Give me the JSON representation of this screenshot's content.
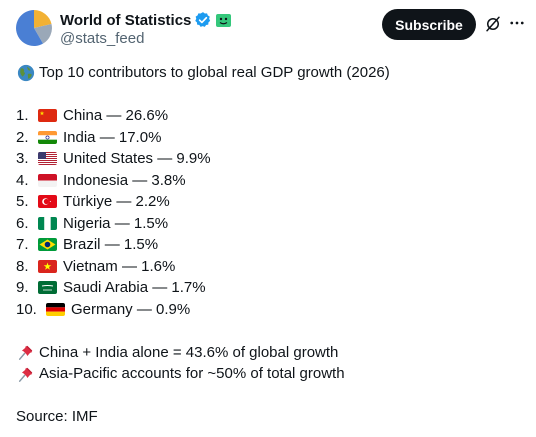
{
  "account": {
    "display_name": "World of Statistics",
    "handle": "@stats_feed"
  },
  "actions": {
    "subscribe_label": "Subscribe"
  },
  "icons": {
    "verified": "verified-badge-icon",
    "affiliate": "affiliate-badge-icon",
    "grok": "grok-icon",
    "more": "more-options-icon",
    "globe": "globe-emoji-icon",
    "pin": "pushpin-emoji-icon"
  },
  "colors": {
    "subscribe_bg": "#0f1419",
    "verified_blue": "#1d9bf0",
    "text_primary": "#0f1419",
    "text_secondary": "#536471"
  },
  "tweet": {
    "title": "Top 10 contributors to global real GDP growth (2026)",
    "ranking": [
      {
        "rank": "1.",
        "flag": "flag-china-icon",
        "country": "China",
        "value": "26.6%"
      },
      {
        "rank": "2.",
        "flag": "flag-india-icon",
        "country": "India",
        "value": "17.0%"
      },
      {
        "rank": "3.",
        "flag": "flag-united-states-icon",
        "country": "United States",
        "value": "9.9%"
      },
      {
        "rank": "4.",
        "flag": "flag-indonesia-icon",
        "country": "Indonesia",
        "value": "3.8%"
      },
      {
        "rank": "5.",
        "flag": "flag-turkiye-icon",
        "country": "Türkiye",
        "value": "2.2%"
      },
      {
        "rank": "6.",
        "flag": "flag-nigeria-icon",
        "country": "Nigeria",
        "value": "1.5%"
      },
      {
        "rank": "7.",
        "flag": "flag-brazil-icon",
        "country": "Brazil",
        "value": "1.5%"
      },
      {
        "rank": "8.",
        "flag": "flag-vietnam-icon",
        "country": "Vietnam",
        "value": "1.6%"
      },
      {
        "rank": "9.",
        "flag": "flag-saudi-arabia-icon",
        "country": "Saudi Arabia",
        "value": "1.7%"
      },
      {
        "rank": "10.",
        "flag": "flag-germany-icon",
        "country": "Germany",
        "value": "0.9%"
      }
    ],
    "separator": "—",
    "notes": [
      "China + India alone = 43.6% of global growth",
      "Asia-Pacific accounts for ~50% of total growth"
    ],
    "source": "Source: IMF"
  }
}
